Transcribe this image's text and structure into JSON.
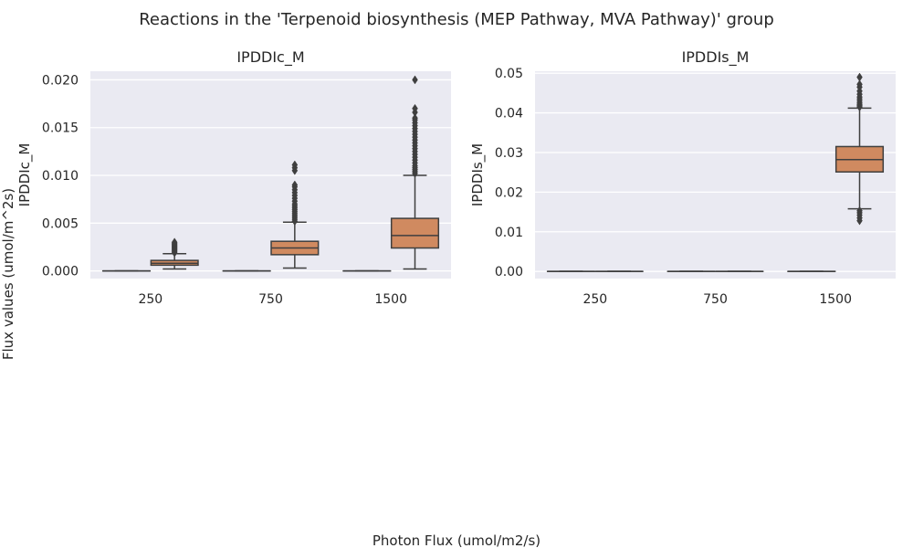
{
  "figure": {
    "title": "Reactions in the 'Terpenoid biosynthesis (MEP Pathway, MVA Pathway)' group",
    "ylabel": "Flux values (umol/m^2s)",
    "xlabel": "Photon Flux (umol/m2/s)"
  },
  "colors": {
    "background": "#ffffff",
    "panel": "#eaeaf2",
    "grid": "#ffffff",
    "box_series_1": "#3274a1",
    "box_series_2": "#d08a60",
    "line": "#3f3f3f"
  },
  "chart_data": [
    {
      "type": "box",
      "title": "IPDDIc_M",
      "ylabel": "IPDDIc_M",
      "categories": [
        "250",
        "750",
        "1500"
      ],
      "ylim": [
        -0.0008,
        0.0209
      ],
      "yticks": [
        0.0,
        0.005,
        0.01,
        0.015,
        0.02
      ],
      "ytick_labels": [
        "0.000",
        "0.005",
        "0.010",
        "0.015",
        "0.020"
      ],
      "grid": true,
      "series": [
        {
          "boxes": [
            {
              "category": "250",
              "min": 0,
              "q1": 0,
              "median": 0,
              "q3": 0,
              "max": 0,
              "outliers": []
            },
            {
              "category": "750",
              "min": 0,
              "q1": 0,
              "median": 0,
              "q3": 0,
              "max": 0,
              "outliers": []
            },
            {
              "category": "1500",
              "min": 0,
              "q1": 0,
              "median": 0,
              "q3": 0,
              "max": 0,
              "outliers": []
            }
          ]
        },
        {
          "boxes": [
            {
              "category": "250",
              "min": 0.0002,
              "q1": 0.0006,
              "median": 0.0008,
              "q3": 0.0011,
              "max": 0.0018,
              "outliers": [
                0.0019,
                0.002,
                0.0021,
                0.0022,
                0.0023,
                0.0024,
                0.0025,
                0.0026,
                0.0027,
                0.0028,
                0.0029,
                0.003
              ]
            },
            {
              "category": "750",
              "min": 0.0003,
              "q1": 0.0017,
              "median": 0.0024,
              "q3": 0.0031,
              "max": 0.0051,
              "outliers": [
                0.0052,
                0.0054,
                0.0056,
                0.0058,
                0.006,
                0.0062,
                0.0064,
                0.0066,
                0.0068,
                0.007,
                0.0073,
                0.0076,
                0.0079,
                0.0082,
                0.0085,
                0.0088,
                0.009,
                0.0105,
                0.0108,
                0.0111
              ]
            },
            {
              "category": "1500",
              "min": 0.0002,
              "q1": 0.0024,
              "median": 0.0037,
              "q3": 0.0055,
              "max": 0.01,
              "outliers": [
                0.0102,
                0.0104,
                0.0106,
                0.0108,
                0.011,
                0.0113,
                0.0116,
                0.0119,
                0.0122,
                0.0125,
                0.0128,
                0.0131,
                0.0134,
                0.0137,
                0.014,
                0.0143,
                0.0146,
                0.0149,
                0.0152,
                0.0155,
                0.0158,
                0.016,
                0.0166,
                0.017,
                0.02
              ]
            }
          ]
        }
      ]
    },
    {
      "type": "box",
      "title": "IPDDIs_M",
      "ylabel": "IPDDIs_M",
      "categories": [
        "250",
        "750",
        "1500"
      ],
      "ylim": [
        -0.0018,
        0.0505
      ],
      "yticks": [
        0.0,
        0.01,
        0.02,
        0.03,
        0.04,
        0.05
      ],
      "ytick_labels": [
        "0.00",
        "0.01",
        "0.02",
        "0.03",
        "0.04",
        "0.05"
      ],
      "grid": true,
      "series": [
        {
          "boxes": [
            {
              "category": "250",
              "min": 0,
              "q1": 0,
              "median": 0,
              "q3": 0,
              "max": 0,
              "outliers": []
            },
            {
              "category": "750",
              "min": 0,
              "q1": 0,
              "median": 0,
              "q3": 0,
              "max": 0,
              "outliers": []
            },
            {
              "category": "1500",
              "min": 0,
              "q1": 0,
              "median": 0,
              "q3": 0,
              "max": 0,
              "outliers": []
            }
          ]
        },
        {
          "boxes": [
            {
              "category": "250",
              "min": 0,
              "q1": 0,
              "median": 0,
              "q3": 0,
              "max": 0,
              "outliers": []
            },
            {
              "category": "750",
              "min": 0,
              "q1": 0,
              "median": 0,
              "q3": 0,
              "max": 0,
              "outliers": []
            },
            {
              "category": "1500",
              "min": 0.0158,
              "q1": 0.0251,
              "median": 0.0282,
              "q3": 0.0315,
              "max": 0.0412,
              "outliers": [
                0.0415,
                0.0418,
                0.0421,
                0.0425,
                0.043,
                0.0435,
                0.044,
                0.0447,
                0.0455,
                0.0465,
                0.0472,
                0.049,
                0.0153,
                0.0148,
                0.0142,
                0.0135,
                0.0128
              ]
            }
          ]
        }
      ]
    }
  ]
}
